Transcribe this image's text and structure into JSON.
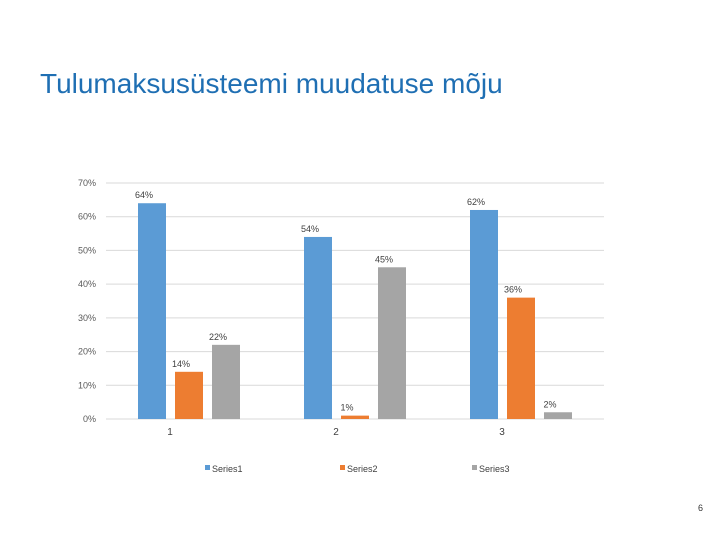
{
  "slide": {
    "title": "Tulumaksusüsteemi muudatuse mõju",
    "page_number": "6"
  },
  "chart_data": {
    "type": "bar",
    "title": "",
    "xlabel": "",
    "ylabel": "",
    "categories": [
      "1",
      "2",
      "3"
    ],
    "series": [
      {
        "name": "Series1",
        "color": "#5b9bd5",
        "values": [
          64,
          54,
          62
        ],
        "labels": [
          "64%",
          "54%",
          "62%"
        ]
      },
      {
        "name": "Series2",
        "color": "#ed7d31",
        "values": [
          14,
          1,
          36
        ],
        "labels": [
          "14%",
          "1%",
          "36%"
        ]
      },
      {
        "name": "Series3",
        "color": "#a5a5a5",
        "values": [
          22,
          45,
          2
        ],
        "labels": [
          "22%",
          "45%",
          "2%"
        ]
      }
    ],
    "ylim": [
      0,
      70
    ],
    "yticks": [
      0,
      10,
      20,
      30,
      40,
      50,
      60,
      70
    ],
    "ytick_labels": [
      "0%",
      "10%",
      "20%",
      "30%",
      "40%",
      "50%",
      "60%",
      "70%"
    ],
    "grid": true,
    "legend_position": "bottom"
  }
}
